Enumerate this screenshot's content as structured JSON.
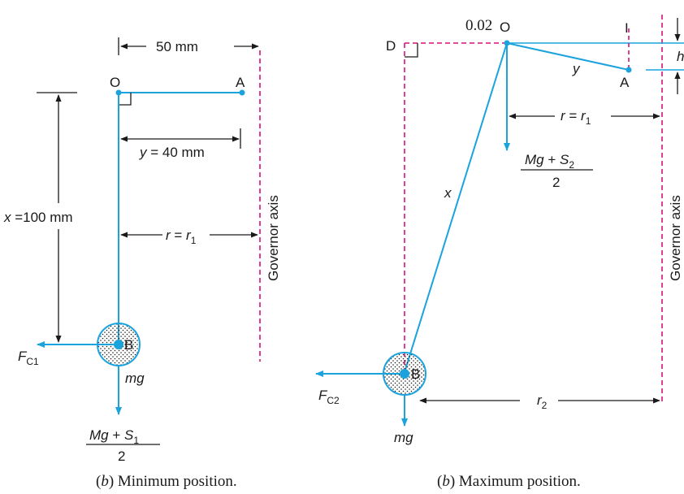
{
  "top_fragment": "0.02",
  "left_figure": {
    "point_o": "O",
    "point_a": "A",
    "point_b": "B",
    "dim_50": "50 mm",
    "dim_y_var": "y",
    "dim_y_rest": " = 40 mm",
    "dim_x_var": "x",
    "dim_x_rest": " =100 mm",
    "r_var": "r",
    "r_eq": " = ",
    "r1_var": "r",
    "r1_sub": "1",
    "governor_label": "Governor axis",
    "force_var": "F",
    "force_sub": "C1",
    "mg_label": "mg",
    "load_num_main": "Mg",
    "load_num_plus": " + ",
    "load_num_s": "S",
    "load_num_sub": "1",
    "load_den": "2",
    "caption_paren_open": "(",
    "caption_b": "b",
    "caption_rest": ") Minimum position."
  },
  "right_figure": {
    "point_o": "O",
    "point_a": "A",
    "point_b": "B",
    "point_d": "D",
    "point_i": "I",
    "label_y": "y",
    "label_x": "x",
    "label_h": "h",
    "r_var": "r",
    "r_eq": " = ",
    "r1_var": "r",
    "r1_sub": "1",
    "load_num_main": "Mg",
    "load_num_plus": " + ",
    "load_num_s": "S",
    "load_num_sub": "2",
    "load_den": "2",
    "governor_label": "Governor axis",
    "force_var": "F",
    "force_sub": "C2",
    "mg_label": "mg",
    "r2_var": "r",
    "r2_sub": "2",
    "caption_paren_open": "(",
    "caption_b": "b",
    "caption_rest": ") Maximum position."
  },
  "colors": {
    "link": "#1aa3dd",
    "axis": "#d8127a",
    "ink": "#1a1a1a"
  }
}
